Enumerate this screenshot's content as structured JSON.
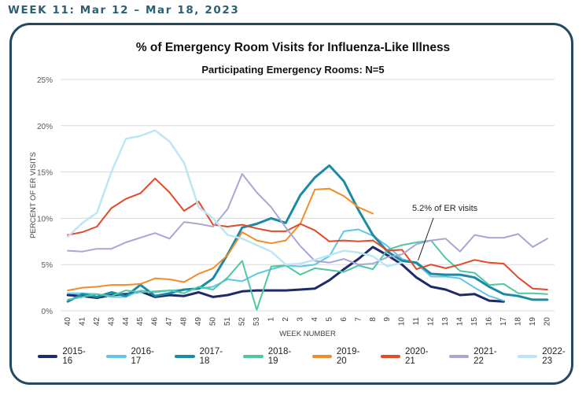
{
  "header": {
    "week_label": "WEEK 11: Mar 12 – Mar 18, 2023"
  },
  "chart_data": {
    "type": "line",
    "title": "% of Emergency Room Visits for Influenza-Like Illness",
    "subtitle": "Participating Emergency Rooms: N=5",
    "xlabel": "WEEK NUMBER",
    "ylabel": "PERCENT OF ER VISITS",
    "ylim": [
      0,
      25
    ],
    "yticks": [
      "0%",
      "5%",
      "10%",
      "15%",
      "20%",
      "25%"
    ],
    "grid": "horizontal",
    "legend": "bottom",
    "categories": [
      "40",
      "41",
      "42",
      "43",
      "44",
      "45",
      "46",
      "47",
      "48",
      "49",
      "50",
      "51",
      "52",
      "53",
      "1",
      "2",
      "3",
      "4",
      "5",
      "6",
      "7",
      "8",
      "9",
      "10",
      "11",
      "12",
      "13",
      "14",
      "15",
      "16",
      "17",
      "18",
      "19",
      "20"
    ],
    "annotation": {
      "text": "5.2% of ER visits",
      "x_index": 24,
      "y": 5.2
    },
    "series": [
      {
        "name": "2015-16",
        "color": "#1f2a6b",
        "width": 3,
        "values": [
          1.7,
          1.6,
          1.4,
          1.7,
          1.8,
          2.1,
          1.5,
          1.7,
          1.6,
          2.0,
          1.5,
          1.7,
          2.1,
          2.2,
          2.2,
          2.2,
          2.3,
          2.4,
          3.3,
          4.5,
          5.6,
          6.9,
          6.0,
          5.0,
          3.6,
          2.6,
          2.3,
          1.7,
          1.8,
          1.1,
          1.0,
          null,
          null,
          null
        ]
      },
      {
        "name": "2016-17",
        "color": "#62c5e8",
        "width": 2,
        "values": [
          1.9,
          1.9,
          1.8,
          1.5,
          1.5,
          2.2,
          2.0,
          2.2,
          2.3,
          2.4,
          2.6,
          3.4,
          3.2,
          4.0,
          4.5,
          4.9,
          4.8,
          5.0,
          5.9,
          8.6,
          8.8,
          8.1,
          7.0,
          5.6,
          5.1,
          3.7,
          3.7,
          3.5,
          2.5,
          1.6,
          1.1,
          null,
          null,
          null
        ]
      },
      {
        "name": "2017-18",
        "color": "#1b8aa5",
        "width": 3,
        "values": [
          1.0,
          1.8,
          1.5,
          2.0,
          1.6,
          2.8,
          1.6,
          1.9,
          2.3,
          2.4,
          3.5,
          6.1,
          9.0,
          9.4,
          10.0,
          9.5,
          12.5,
          14.4,
          15.7,
          14.0,
          10.9,
          8.2,
          6.4,
          5.4,
          5.2,
          4.0,
          3.9,
          3.9,
          3.6,
          2.6,
          1.8,
          1.6,
          1.2,
          1.2
        ]
      },
      {
        "name": "2018-19",
        "color": "#4fc8a2",
        "width": 2,
        "values": [
          1.2,
          1.5,
          1.8,
          1.6,
          2.2,
          2.0,
          2.1,
          2.2,
          1.9,
          2.6,
          2.3,
          3.6,
          5.4,
          0.1,
          4.8,
          4.9,
          3.9,
          4.6,
          4.4,
          4.2,
          4.9,
          4.5,
          6.6,
          7.1,
          7.4,
          7.6,
          5.7,
          4.3,
          4.1,
          2.8,
          2.9,
          1.9,
          1.9,
          1.8
        ]
      },
      {
        "name": "2019-20",
        "color": "#f28c28",
        "width": 2,
        "values": [
          2.2,
          2.5,
          2.6,
          2.8,
          2.8,
          2.9,
          3.5,
          3.4,
          3.1,
          4.0,
          4.6,
          6.0,
          8.5,
          7.6,
          7.3,
          7.6,
          9.4,
          13.1,
          13.2,
          12.4,
          11.2,
          10.5,
          null,
          null,
          null,
          null,
          null,
          null,
          null,
          null,
          null,
          null,
          null,
          null
        ]
      },
      {
        "name": "2020-21",
        "color": "#e0492a",
        "width": 2,
        "values": [
          8.2,
          8.5,
          9.1,
          11.1,
          12.1,
          12.7,
          14.3,
          12.8,
          10.8,
          11.8,
          9.3,
          9.1,
          9.3,
          8.9,
          8.6,
          8.6,
          9.4,
          8.7,
          7.5,
          7.6,
          7.5,
          7.6,
          6.5,
          6.6,
          4.5,
          5.0,
          4.6,
          5.0,
          5.5,
          5.2,
          5.1,
          3.6,
          2.4,
          2.3
        ]
      },
      {
        "name": "2021-22",
        "color": "#a9a6d3",
        "width": 2,
        "values": [
          6.5,
          6.4,
          6.7,
          6.7,
          7.4,
          7.9,
          8.4,
          7.8,
          9.6,
          9.4,
          9.1,
          11.0,
          14.8,
          12.8,
          11.2,
          9.0,
          7.0,
          5.4,
          5.2,
          5.6,
          5.0,
          5.1,
          5.8,
          6.1,
          7.2,
          7.6,
          7.8,
          6.4,
          8.2,
          7.9,
          7.9,
          8.3,
          6.9,
          7.8
        ]
      },
      {
        "name": "2022-23",
        "color": "#bde6f4",
        "width": 2.5,
        "values": [
          8.0,
          9.5,
          10.6,
          15.0,
          18.6,
          18.9,
          19.5,
          18.3,
          16.0,
          11.2,
          10.0,
          8.2,
          7.8,
          7.1,
          6.4,
          5.0,
          5.1,
          5.5,
          6.0,
          6.5,
          6.3,
          5.9,
          4.8,
          5.2,
          null,
          null,
          null,
          null,
          null,
          null,
          null,
          null,
          null,
          null
        ]
      }
    ]
  }
}
